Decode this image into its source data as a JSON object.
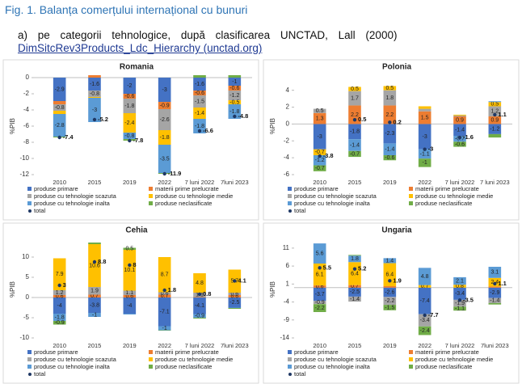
{
  "header": {
    "title": "Fig. 1. Balanța comerțului internațional cu bunuri",
    "subtitle": "a) pe categorii tehnologice, după clasificarea UNCTAD, Lall (2000)",
    "link": "DimSitcRev3Products_Ldc_Hierarchy (unctad.org)"
  },
  "chart_data": [
    {
      "type": "bar",
      "stacked": true,
      "title": "Romania",
      "ylabel": "%PIB",
      "categories": [
        "2010",
        "2015",
        "2019",
        "2022",
        "7 luni 2022",
        "7luni 2023"
      ],
      "ylim": [
        -12,
        0
      ],
      "yticks": [
        0,
        -2,
        -4,
        -6,
        -8,
        -10,
        -12
      ],
      "legend": "bottom",
      "series": [
        {
          "name": "produse primare",
          "color": "#4472c4",
          "values": [
            -2.9,
            -1.6,
            -2.0,
            -3.0,
            -1.6,
            -1.0
          ]
        },
        {
          "name": "materii prime prelucrate",
          "color": "#ed7d31",
          "values": [
            -0.4,
            0.3,
            -0.6,
            -0.9,
            -0.6,
            -0.6
          ]
        },
        {
          "name": "produse cu tehnologie scazuta",
          "color": "#a5a5a5",
          "values": [
            -0.8,
            -0.8,
            -1.8,
            -2.6,
            -1.5,
            -1.2
          ]
        },
        {
          "name": "produse cu tehnologie medie",
          "color": "#ffc000",
          "values": [
            -0.4,
            -0.1,
            -2.4,
            -1.8,
            -1.4,
            -0.5
          ]
        },
        {
          "name": "produse cu tehnologie inalta",
          "color": "#5b9bd5",
          "values": [
            -2.8,
            -3.0,
            -0.8,
            -3.5,
            -1.8,
            -1.8
          ]
        },
        {
          "name": "produse neclasificate",
          "color": "#70ad47",
          "values": [
            -0.1,
            0.0,
            -0.2,
            -0.1,
            0.3,
            0.3
          ]
        },
        {
          "name": "total",
          "color": "#1f3864",
          "marker": "dot",
          "values": [
            -7.4,
            -5.2,
            -7.8,
            -11.9,
            -6.6,
            -4.8
          ]
        }
      ]
    },
    {
      "type": "bar",
      "stacked": true,
      "title": "Polonia",
      "ylabel": "%PIB",
      "categories": [
        "2010",
        "2015",
        "2019",
        "2022",
        "7 luni 2022",
        "7 luni 2023"
      ],
      "ylim": [
        -6,
        5.5
      ],
      "yticks": [
        4,
        2,
        0,
        -2,
        -4,
        -6
      ],
      "legend": "bottom",
      "series": [
        {
          "name": "produse primare",
          "color": "#4472c4",
          "values": [
            -3.0,
            -1.8,
            -2.3,
            -3.0,
            -1.4,
            -1.2
          ]
        },
        {
          "name": "materii prime prelucrate",
          "color": "#ed7d31",
          "values": [
            1.3,
            2.2,
            2.2,
            1.5,
            0.9,
            0.9
          ]
        },
        {
          "name": "produse cu tehnologie scazuta",
          "color": "#a5a5a5",
          "values": [
            0.5,
            1.7,
            1.8,
            0.3,
            0.1,
            1.2
          ]
        },
        {
          "name": "produse cu tehnologie medie",
          "color": "#ffc000",
          "values": [
            -0.7,
            0.5,
            0.5,
            0.3,
            0.1,
            0.5
          ]
        },
        {
          "name": "produse cu tehnologie inalta",
          "color": "#5b9bd5",
          "values": [
            -1.2,
            -1.4,
            -1.4,
            -1.1,
            -0.7,
            0.1
          ]
        },
        {
          "name": "produse neclasificate",
          "color": "#70ad47",
          "values": [
            -0.7,
            -0.7,
            -0.6,
            -1.0,
            -0.6,
            -0.4
          ]
        },
        {
          "name": "total",
          "color": "#1f3864",
          "marker": "dot",
          "values": [
            -3.8,
            0.5,
            0.2,
            -3.0,
            -1.6,
            1.1
          ]
        }
      ]
    },
    {
      "type": "bar",
      "stacked": true,
      "title": "Cehia",
      "ylabel": "%PIB",
      "categories": [
        "2010",
        "2015",
        "2019",
        "2022",
        "7 luni 2022",
        "7luni 2023"
      ],
      "ylim": [
        -10,
        14
      ],
      "yticks": [
        10,
        5,
        0,
        -5,
        -10
      ],
      "legend": "bottom",
      "series": [
        {
          "name": "produse primare",
          "color": "#4472c4",
          "values": [
            -4.0,
            -3.8,
            -4.0,
            -7.1,
            -4.1,
            -2.5
          ]
        },
        {
          "name": "materii prime prelucrate",
          "color": "#ed7d31",
          "values": [
            0.6,
            0.7,
            0.6,
            0.7,
            0.1,
            0.6
          ]
        },
        {
          "name": "produse cu tehnologie scazuta",
          "color": "#a5a5a5",
          "values": [
            1.2,
            1.9,
            1.1,
            0.6,
            1.1,
            0.6
          ]
        },
        {
          "name": "produse cu tehnologie medie",
          "color": "#ffc000",
          "values": [
            7.9,
            10.6,
            10.1,
            8.7,
            4.8,
            5.7
          ]
        },
        {
          "name": "produse cu tehnologie inalta",
          "color": "#5b9bd5",
          "values": [
            -1.8,
            -1.0,
            -0.2,
            -1.0,
            -0.9,
            -0.1
          ]
        },
        {
          "name": "produse neclasificate",
          "color": "#70ad47",
          "values": [
            -0.9,
            0.4,
            0.5,
            -0.1,
            -0.2,
            -0.2
          ]
        },
        {
          "name": "total",
          "color": "#1f3864",
          "marker": "dot",
          "values": [
            3.0,
            8.8,
            8.0,
            1.8,
            0.8,
            4.1
          ]
        }
      ]
    },
    {
      "type": "bar",
      "stacked": true,
      "title": "Ungaria",
      "ylabel": "%PIB",
      "categories": [
        "2010",
        "2015",
        "2019",
        "2022",
        "7 luni 2022",
        "7luni 2023"
      ],
      "ylim": [
        -14,
        13
      ],
      "yticks": [
        11,
        6,
        1,
        -4,
        -9,
        -14
      ],
      "legend": "bottom",
      "series": [
        {
          "name": "produse primare",
          "color": "#4472c4",
          "values": [
            -3.7,
            -2.5,
            -2.6,
            -7.4,
            -3.4,
            -2.9
          ]
        },
        {
          "name": "materii prime prelucrate",
          "color": "#ed7d31",
          "values": [
            0.6,
            0.7,
            0.4,
            0.0,
            0.0,
            0.3
          ]
        },
        {
          "name": "produse cu tehnologie scazuta",
          "color": "#a5a5a5",
          "values": [
            -0.9,
            -1.4,
            -2.2,
            -3.4,
            -1.9,
            -1.4
          ]
        },
        {
          "name": "produse cu tehnologie medie",
          "color": "#ffc000",
          "values": [
            6.1,
            6.4,
            6.4,
            0.7,
            0.8,
            2.4
          ]
        },
        {
          "name": "produse cu tehnologie inalta",
          "color": "#5b9bd5",
          "values": [
            5.6,
            1.8,
            1.4,
            4.8,
            2.1,
            3.1
          ]
        },
        {
          "name": "produse neclasificate",
          "color": "#70ad47",
          "values": [
            -2.2,
            0.2,
            -1.5,
            -2.4,
            -1.1,
            -0.4
          ]
        },
        {
          "name": "total",
          "color": "#1f3864",
          "marker": "dot",
          "values": [
            5.5,
            5.2,
            1.9,
            -7.7,
            -3.5,
            1.1
          ]
        }
      ]
    }
  ]
}
